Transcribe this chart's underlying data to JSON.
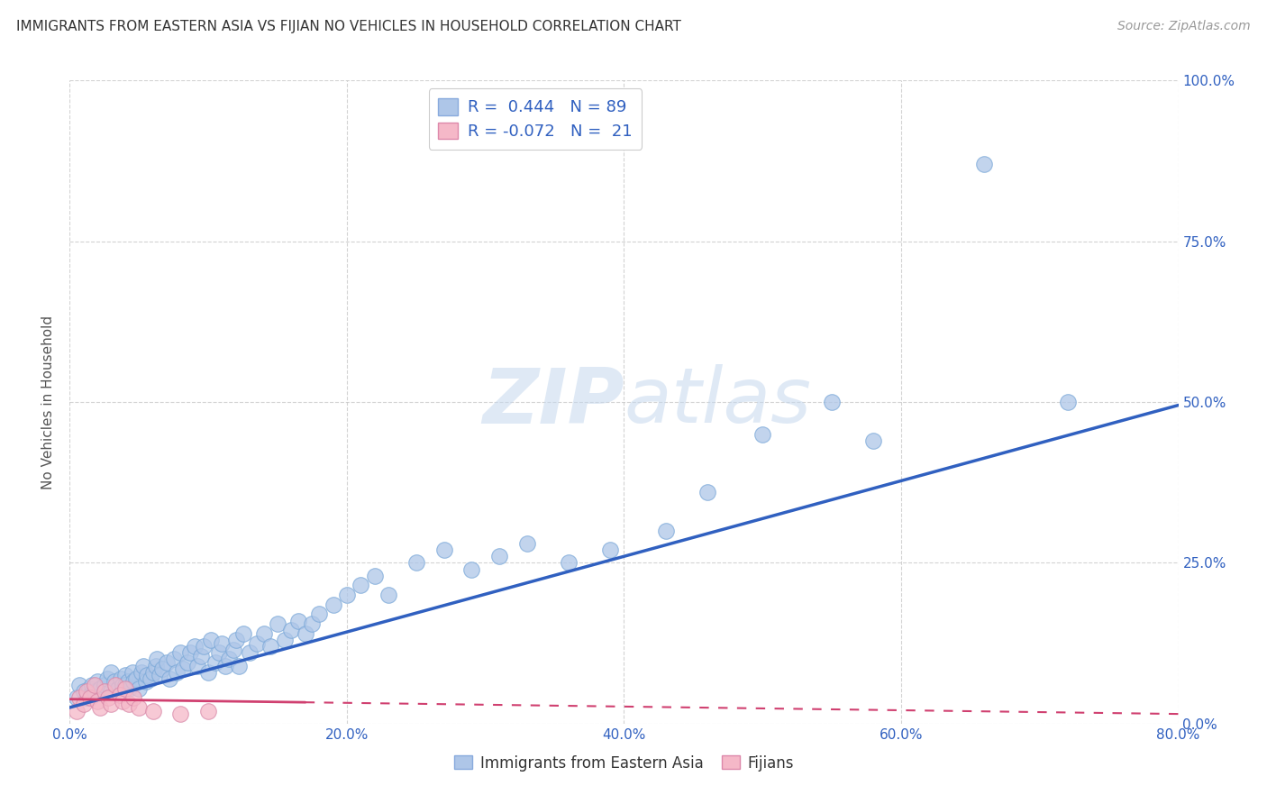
{
  "title": "IMMIGRANTS FROM EASTERN ASIA VS FIJIAN NO VEHICLES IN HOUSEHOLD CORRELATION CHART",
  "source": "Source: ZipAtlas.com",
  "xlim": [
    0.0,
    0.8
  ],
  "ylim": [
    0.0,
    1.0
  ],
  "ylabel": "No Vehicles in Household",
  "legend_label1": "Immigrants from Eastern Asia",
  "legend_label2": "Fijians",
  "R1": 0.444,
  "N1": 89,
  "R2": -0.072,
  "N2": 21,
  "color1": "#aec6e8",
  "color2": "#f5b8c8",
  "line_color1": "#3060c0",
  "line_color2": "#d04070",
  "background_color": "#ffffff",
  "grid_color": "#c8c8c8",
  "scatter1_x": [
    0.005,
    0.007,
    0.01,
    0.012,
    0.014,
    0.015,
    0.016,
    0.018,
    0.02,
    0.022,
    0.025,
    0.027,
    0.03,
    0.03,
    0.032,
    0.035,
    0.037,
    0.038,
    0.04,
    0.04,
    0.042,
    0.043,
    0.045,
    0.046,
    0.048,
    0.05,
    0.052,
    0.053,
    0.055,
    0.056,
    0.058,
    0.06,
    0.062,
    0.063,
    0.065,
    0.067,
    0.07,
    0.072,
    0.075,
    0.077,
    0.08,
    0.082,
    0.085,
    0.087,
    0.09,
    0.092,
    0.095,
    0.097,
    0.1,
    0.102,
    0.105,
    0.108,
    0.11,
    0.112,
    0.115,
    0.118,
    0.12,
    0.122,
    0.125,
    0.13,
    0.135,
    0.14,
    0.145,
    0.15,
    0.155,
    0.16,
    0.165,
    0.17,
    0.175,
    0.18,
    0.19,
    0.2,
    0.21,
    0.22,
    0.23,
    0.25,
    0.27,
    0.29,
    0.31,
    0.33,
    0.36,
    0.39,
    0.43,
    0.46,
    0.5,
    0.55,
    0.58,
    0.66,
    0.72
  ],
  "scatter1_y": [
    0.04,
    0.06,
    0.05,
    0.04,
    0.055,
    0.045,
    0.06,
    0.05,
    0.065,
    0.055,
    0.06,
    0.07,
    0.05,
    0.08,
    0.065,
    0.055,
    0.07,
    0.06,
    0.075,
    0.06,
    0.065,
    0.055,
    0.08,
    0.065,
    0.07,
    0.055,
    0.08,
    0.09,
    0.065,
    0.075,
    0.07,
    0.08,
    0.09,
    0.1,
    0.075,
    0.085,
    0.095,
    0.07,
    0.1,
    0.08,
    0.11,
    0.085,
    0.095,
    0.11,
    0.12,
    0.09,
    0.105,
    0.12,
    0.08,
    0.13,
    0.095,
    0.11,
    0.125,
    0.09,
    0.1,
    0.115,
    0.13,
    0.09,
    0.14,
    0.11,
    0.125,
    0.14,
    0.12,
    0.155,
    0.13,
    0.145,
    0.16,
    0.14,
    0.155,
    0.17,
    0.185,
    0.2,
    0.215,
    0.23,
    0.2,
    0.25,
    0.27,
    0.24,
    0.26,
    0.28,
    0.25,
    0.27,
    0.3,
    0.36,
    0.45,
    0.5,
    0.44,
    0.87,
    0.5
  ],
  "scatter2_x": [
    0.005,
    0.007,
    0.01,
    0.012,
    0.015,
    0.018,
    0.02,
    0.022,
    0.025,
    0.028,
    0.03,
    0.033,
    0.036,
    0.038,
    0.04,
    0.043,
    0.046,
    0.05,
    0.06,
    0.08,
    0.1
  ],
  "scatter2_y": [
    0.02,
    0.04,
    0.03,
    0.05,
    0.04,
    0.06,
    0.035,
    0.025,
    0.05,
    0.04,
    0.03,
    0.06,
    0.045,
    0.035,
    0.055,
    0.03,
    0.04,
    0.025,
    0.02,
    0.015,
    0.02
  ],
  "line1_x": [
    0.0,
    0.8
  ],
  "line1_y": [
    0.025,
    0.495
  ],
  "line2_x": [
    0.0,
    0.8
  ],
  "line2_y": [
    0.038,
    0.015
  ]
}
